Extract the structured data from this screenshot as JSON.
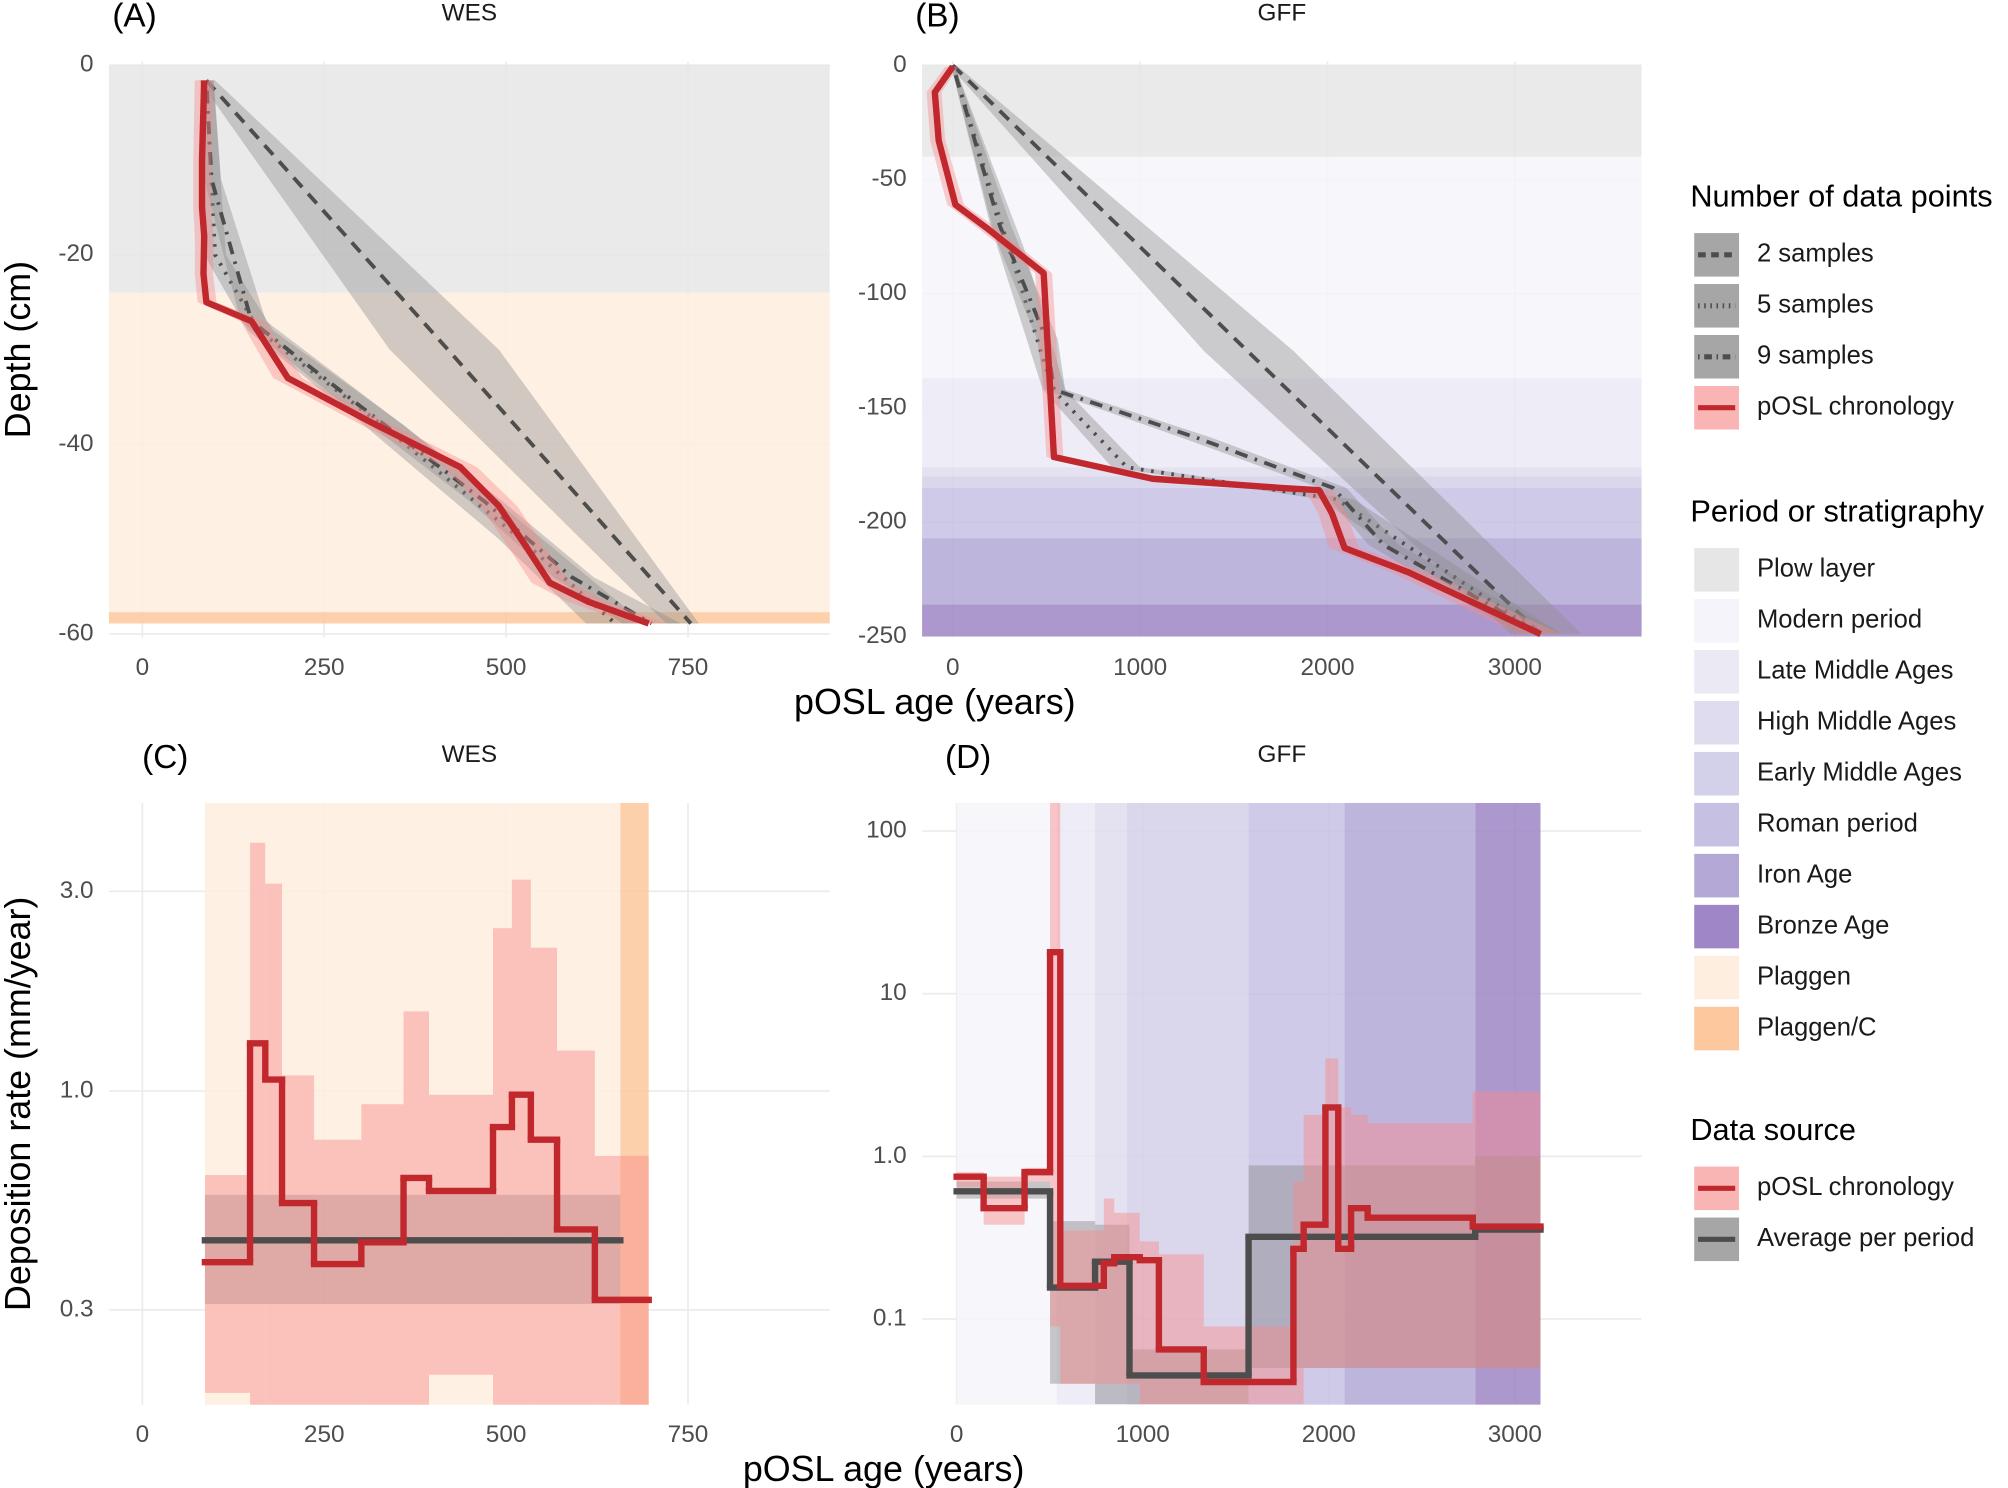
{
  "chart_data": [
    {
      "type": "line",
      "panel": "(A)",
      "title": "WES",
      "xlabel": "pOSL age (years)",
      "ylabel": "Depth (cm)",
      "xlim": [
        -46,
        945
      ],
      "ylim": [
        -60.4,
        0.4
      ],
      "xticks": [
        0,
        250,
        500,
        750
      ],
      "yticks": [
        0,
        -20,
        -40,
        -60
      ],
      "grid": true,
      "bands": [
        {
          "from": 0,
          "to": -24,
          "color": "#e6e6e6"
        },
        {
          "from": -24,
          "to": -57.7,
          "color": "#feeedf"
        },
        {
          "from": -57.7,
          "to": -58.9,
          "color": "#fdc89e"
        }
      ],
      "series": [
        {
          "name": "2 samples",
          "style": "dashed",
          "color": "#4d4d4d",
          "fill": "#8c8c8c",
          "x": [
            88,
            420,
            754
          ],
          "x_low": [
            78,
            340,
            720
          ],
          "x_high": [
            100,
            490,
            765
          ],
          "y": [
            -1.6,
            -30,
            -58.9
          ]
        },
        {
          "name": "5 samples",
          "style": "dotted",
          "color": "#4d4d4d",
          "fill": "#8c8c8c",
          "x": [
            88,
            100,
            160,
            330,
            520,
            650
          ],
          "x_low": [
            80,
            85,
            145,
            305,
            490,
            610
          ],
          "x_high": [
            98,
            115,
            180,
            360,
            550,
            690
          ],
          "y": [
            -1.6,
            -20,
            -28,
            -38,
            -50,
            -58.9
          ]
        },
        {
          "name": "9 samples",
          "style": "dotdash",
          "color": "#4d4d4d",
          "fill": "#8c8c8c",
          "x": [
            88,
            95,
            150,
            300,
            470,
            590,
            700
          ],
          "x_low": [
            80,
            85,
            135,
            280,
            450,
            565,
            660
          ],
          "x_high": [
            98,
            108,
            170,
            325,
            495,
            620,
            740
          ],
          "y": [
            -1.6,
            -12,
            -27,
            -36,
            -46,
            -54,
            -58.9
          ]
        },
        {
          "name": "pOSL chronology",
          "style": "solid",
          "color": "#c0282d",
          "fill": "#f88a8a",
          "x": [
            85,
            82,
            82,
            85,
            84,
            88,
            150,
            200,
            315,
            437,
            490,
            525,
            560,
            613,
            696
          ],
          "x_low": [
            72,
            70,
            70,
            72,
            72,
            76,
            135,
            180,
            295,
            415,
            465,
            500,
            535,
            585,
            670
          ],
          "x_high": [
            98,
            95,
            95,
            98,
            97,
            102,
            168,
            220,
            338,
            460,
            515,
            550,
            588,
            640,
            720
          ],
          "y": [
            -1.6,
            -10,
            -15,
            -18,
            -22,
            -25,
            -27,
            -33,
            -37.7,
            -42.4,
            -46.5,
            -50.5,
            -54.6,
            -56.6,
            -58.9
          ]
        }
      ]
    },
    {
      "type": "line",
      "panel": "(B)",
      "title": "GFF",
      "xlim": [
        -164,
        3677
      ],
      "ylim": [
        -250.6,
        1.7
      ],
      "xticks": [
        0,
        1000,
        2000,
        3000
      ],
      "yticks": [
        0,
        -50,
        -100,
        -150,
        -200,
        -250
      ],
      "grid": true,
      "bands": [
        {
          "from": 0,
          "to": -40,
          "color": "#e6e6e6"
        },
        {
          "from": -40,
          "to": -137,
          "color": "#f5f4fa"
        },
        {
          "from": -137,
          "to": -176,
          "color": "#ebe9f4"
        },
        {
          "from": -176,
          "to": -180,
          "color": "#dfdcef"
        },
        {
          "from": -180,
          "to": -185,
          "color": "#d3d0e9"
        },
        {
          "from": -185,
          "to": -207,
          "color": "#c6c1e3"
        },
        {
          "from": -207,
          "to": -236,
          "color": "#b3a8d6"
        },
        {
          "from": -236,
          "to": -250,
          "color": "#9f86c6"
        }
      ],
      "series": [
        {
          "name": "2 samples",
          "style": "dashed",
          "color": "#4d4d4d",
          "fill": "#8c8c8c",
          "x": [
            0,
            1572,
            3137
          ],
          "x_low": [
            -20,
            1340,
            2980
          ],
          "x_high": [
            20,
            1818,
            3356
          ],
          "y": [
            0,
            -125,
            -249
          ]
        },
        {
          "name": "5 samples",
          "style": "dotted",
          "color": "#4d4d4d",
          "fill": "#8c8c8c",
          "x": [
            0,
            300,
            533,
            930,
            2050,
            3137
          ],
          "x_low": [
            -10,
            240,
            480,
            850,
            1960,
            3020
          ],
          "x_high": [
            10,
            380,
            600,
            1000,
            2140,
            3250
          ],
          "y": [
            0,
            -80,
            -142,
            -176,
            -190,
            -249
          ]
        },
        {
          "name": "9 samples",
          "style": "dotdash",
          "color": "#4d4d4d",
          "fill": "#8c8c8c",
          "x": [
            0,
            250,
            500,
            540,
            1300,
            2030,
            2300,
            3137
          ],
          "x_low": [
            -10,
            200,
            450,
            490,
            1220,
            1960,
            2220,
            3020
          ],
          "x_high": [
            10,
            310,
            560,
            600,
            1380,
            2100,
            2380,
            3250
          ],
          "y": [
            0,
            -70,
            -120,
            -142,
            -163,
            -185,
            -210,
            -249
          ]
        },
        {
          "name": "pOSL chronology",
          "style": "solid",
          "color": "#c0282d",
          "fill": "#f88a8a",
          "x": [
            0,
            -96,
            -75,
            14,
            178,
            485,
            540,
            1066,
            1750,
            1955,
            2023,
            2091,
            2160,
            2433,
            3137
          ],
          "x_low": [
            -40,
            -140,
            -120,
            -30,
            130,
            440,
            500,
            1000,
            1680,
            1880,
            1950,
            2010,
            2080,
            2340,
            3020
          ],
          "x_high": [
            30,
            -60,
            -40,
            60,
            230,
            530,
            590,
            1130,
            1820,
            2030,
            2100,
            2170,
            2250,
            2530,
            3250
          ],
          "y": [
            -0.6,
            -11.8,
            -33,
            -61,
            -71,
            -91,
            -171.5,
            -181,
            -185,
            -186,
            -196,
            -211.3,
            -213.5,
            -222,
            -249
          ]
        }
      ]
    },
    {
      "type": "step",
      "panel": "(C)",
      "title": "WES",
      "xlabel": "pOSL age (years)",
      "ylabel": "Deposition rate (mm/year)",
      "xlim": [
        -46,
        945
      ],
      "ylim": [
        0.178,
        4.88
      ],
      "log_y": true,
      "xticks": [
        0,
        250,
        500,
        750
      ],
      "yticks": [
        0.3,
        {
          "value": 1,
          "label": "1.0"
        },
        {
          "value": 3,
          "label": "3.0"
        }
      ],
      "grid": true,
      "bands": [
        {
          "from": 86,
          "to": 657,
          "color": "#feeedf"
        },
        {
          "from": 657,
          "to": 696,
          "color": "#fdc89e"
        }
      ],
      "series": [
        {
          "name": "Average per period",
          "color": "#4d4d4d",
          "fill": "#8c8c8c",
          "bins": [
            86,
            657
          ],
          "values": [
            0.44
          ],
          "lower": [
            0.31
          ],
          "upper": [
            0.565
          ]
        },
        {
          "name": "pOSL chronology",
          "color": "#c0282d",
          "fill": "#f88a8a",
          "bins": [
            86,
            148,
            169,
            192,
            236,
            301,
            359,
            394,
            482,
            508,
            534,
            570,
            622,
            696
          ],
          "values": [
            0.39,
            1.3,
            1.065,
            0.54,
            0.386,
            0.435,
            0.62,
            0.577,
            0.82,
            0.98,
            0.765,
            0.467,
            0.317
          ],
          "lower": [
            0.19,
            0.17,
            0.17,
            0.17,
            0.17,
            0.17,
            0.17,
            0.21,
            0.17,
            0.17,
            0.17,
            0.17,
            0.17
          ],
          "upper": [
            0.63,
            3.92,
            3.13,
            1.09,
            0.765,
            0.93,
            1.55,
            0.98,
            2.45,
            3.2,
            2.2,
            1.25,
            0.7
          ]
        }
      ]
    },
    {
      "type": "step",
      "panel": "(D)",
      "title": "GFF",
      "xlim": [
        -186,
        3682
      ],
      "ylim": [
        0.0297,
        149
      ],
      "log_y": true,
      "xticks": [
        0,
        1000,
        2000,
        3000
      ],
      "yticks": [
        0.1,
        {
          "value": 1,
          "label": "1.0"
        },
        10,
        100
      ],
      "grid": true,
      "bands": [
        {
          "from": 0,
          "to": 537,
          "color": "#f5f4fa"
        },
        {
          "from": 537,
          "to": 743,
          "color": "#ebe9f4"
        },
        {
          "from": 743,
          "to": 915,
          "color": "#dfdcef"
        },
        {
          "from": 915,
          "to": 1569,
          "color": "#d3d0e9"
        },
        {
          "from": 1569,
          "to": 2085,
          "color": "#c6c1e3"
        },
        {
          "from": 2085,
          "to": 2787,
          "color": "#b3a8d6"
        },
        {
          "from": 2787,
          "to": 3138,
          "color": "#9f86c6"
        }
      ],
      "series": [
        {
          "name": "Average per period",
          "color": "#4d4d4d",
          "fill": "#8c8c8c",
          "bins": [
            0,
            502,
            744,
            929,
            1569,
            2787,
            3138
          ],
          "values": [
            0.61,
            0.156,
            0.225,
            0.045,
            0.32,
            0.355
          ],
          "lower": [
            0.55,
            0.04,
            0.03,
            0.03,
            0.05,
            0.05
          ],
          "upper": [
            0.7,
            0.4,
            0.38,
            0.065,
            0.88,
            1.0
          ]
        },
        {
          "name": "pOSL chronology",
          "color": "#c0282d",
          "fill": "#f88a8a",
          "bins": [
            0,
            145,
            365,
            502,
            557,
            791,
            847,
            984,
            1087,
            1328,
            1810,
            1865,
            1982,
            2051,
            2120,
            2209,
            2774,
            3138
          ],
          "values": [
            0.75,
            0.48,
            0.8,
            18,
            0.16,
            0.22,
            0.24,
            0.23,
            0.065,
            0.041,
            0.27,
            0.38,
            2.0,
            0.27,
            0.48,
            0.42,
            0.37
          ],
          "lower": [
            0.65,
            0.38,
            0.7,
            0.09,
            0.04,
            0.04,
            0.04,
            0.03,
            0.03,
            0.03,
            0.03,
            0.05,
            0.05,
            0.05,
            0.05,
            0.05,
            0.05
          ],
          "upper": [
            0.8,
            0.75,
            0.85,
            150,
            0.35,
            0.55,
            0.45,
            0.3,
            0.25,
            0.09,
            0.7,
            1.8,
            4.0,
            2.0,
            1.8,
            1.6,
            2.5
          ]
        }
      ]
    }
  ],
  "legend": {
    "groups": [
      {
        "title": "Number of data points",
        "entries": [
          {
            "label": "2 samples",
            "style": "dashed",
            "color": "#4d4d4d",
            "fill": "#a6a6a6"
          },
          {
            "label": "5 samples",
            "style": "dotted",
            "color": "#4d4d4d",
            "fill": "#a6a6a6"
          },
          {
            "label": "9 samples",
            "style": "dotdash",
            "color": "#4d4d4d",
            "fill": "#a6a6a6"
          },
          {
            "label": "pOSL chronology",
            "style": "solid",
            "color": "#c0282d",
            "fill": "#f9b4b4"
          }
        ]
      },
      {
        "title": "Period or stratigraphy",
        "entries": [
          {
            "label": "Plow layer",
            "fill": "#e6e6e6"
          },
          {
            "label": "Modern period",
            "fill": "#f5f4fa"
          },
          {
            "label": "Late Middle Ages",
            "fill": "#ebe9f4"
          },
          {
            "label": "High Middle Ages",
            "fill": "#dfdcef"
          },
          {
            "label": "Early Middle Ages",
            "fill": "#d3d0e9"
          },
          {
            "label": "Roman period",
            "fill": "#c6c1e3"
          },
          {
            "label": "Iron Age",
            "fill": "#b3a8d6"
          },
          {
            "label": "Bronze Age",
            "fill": "#9f86c6"
          },
          {
            "label": "Plaggen",
            "fill": "#feeedf"
          },
          {
            "label": "Plaggen/C",
            "fill": "#fdc89e"
          }
        ]
      },
      {
        "title": "Data source",
        "entries": [
          {
            "label": "pOSL chronology",
            "style": "solid",
            "color": "#c0282d",
            "fill": "#f9b4b4"
          },
          {
            "label": "Average per period",
            "style": "solid",
            "color": "#4d4d4d",
            "fill": "#a6a6a6"
          }
        ]
      }
    ]
  }
}
